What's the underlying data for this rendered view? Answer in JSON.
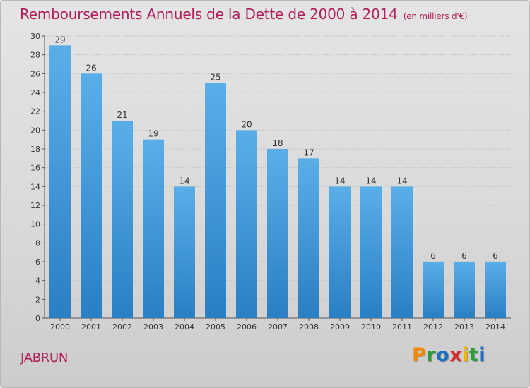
{
  "header": {
    "title": "Remboursements Annuels de la Dette de 2000 à 2014",
    "unit": "(en milliers d'€)"
  },
  "footer": {
    "commune": "JABRUN",
    "logo_letters": [
      "P",
      "r",
      "o",
      "x",
      "i",
      "t",
      "i"
    ]
  },
  "colors": {
    "title": "#b01e5c",
    "bar_top": "#5aaee8",
    "bar_bottom": "#2a7fc4"
  },
  "chart_data": {
    "type": "bar",
    "title": "Remboursements Annuels de la Dette de 2000 à 2014",
    "ylabel": "en milliers d'€",
    "xlabel": "",
    "categories": [
      "2000",
      "2001",
      "2002",
      "2003",
      "2004",
      "2005",
      "2006",
      "2007",
      "2008",
      "2009",
      "2010",
      "2011",
      "2012",
      "2013",
      "2014"
    ],
    "values": [
      29,
      26,
      21,
      19,
      14,
      25,
      20,
      18,
      17,
      14,
      14,
      14,
      6,
      6,
      6
    ],
    "ylim": [
      0,
      30
    ],
    "yticks": [
      0,
      2,
      4,
      6,
      8,
      10,
      12,
      14,
      16,
      18,
      20,
      22,
      24,
      26,
      28,
      30
    ],
    "grid": true
  }
}
